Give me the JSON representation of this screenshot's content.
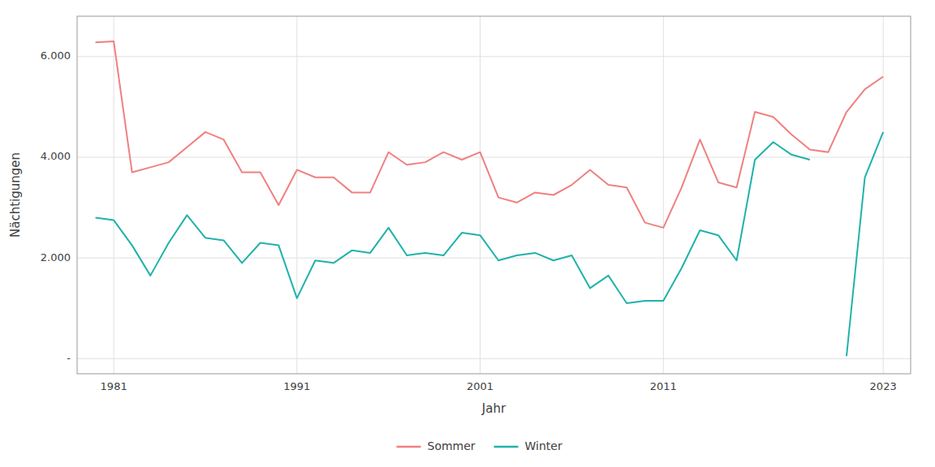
{
  "chart_data": {
    "type": "line",
    "xlabel": "Jahr",
    "ylabel": "Nächtigungen",
    "x": [
      1980,
      1981,
      1982,
      1983,
      1984,
      1985,
      1986,
      1987,
      1988,
      1989,
      1990,
      1991,
      1992,
      1993,
      1994,
      1995,
      1996,
      1997,
      1998,
      1999,
      2000,
      2001,
      2002,
      2003,
      2004,
      2005,
      2006,
      2007,
      2008,
      2009,
      2010,
      2011,
      2012,
      2013,
      2014,
      2015,
      2016,
      2017,
      2018,
      2019,
      2020,
      2021,
      2022,
      2023
    ],
    "series": [
      {
        "name": "Sommer",
        "color": "#f08080",
        "values": [
          6280,
          6300,
          3700,
          3800,
          3900,
          4200,
          4500,
          4350,
          3700,
          3700,
          3050,
          3750,
          3600,
          3600,
          3300,
          3300,
          4100,
          3850,
          3900,
          4100,
          3950,
          4100,
          3200,
          3100,
          3300,
          3250,
          3450,
          3750,
          3450,
          3400,
          2700,
          2600,
          3400,
          4350,
          3500,
          3400,
          4900,
          4800,
          4450,
          4150,
          4100,
          4900,
          5350,
          5600
        ]
      },
      {
        "name": "Winter",
        "color": "#20b2aa",
        "values": [
          2800,
          2750,
          2250,
          1650,
          2300,
          2850,
          2400,
          2350,
          1900,
          2300,
          2250,
          1200,
          1950,
          1900,
          2150,
          2100,
          2600,
          2050,
          2100,
          2050,
          2500,
          2450,
          1950,
          2050,
          2100,
          1950,
          2050,
          1400,
          1650,
          1100,
          1150,
          1150,
          1800,
          2550,
          2450,
          1950,
          3950,
          4300,
          4050,
          3950,
          null,
          50,
          3600,
          4500
        ]
      }
    ],
    "xlim": [
      1979.0,
      2024.5
    ],
    "ylim": [
      -300,
      6800
    ],
    "xticks": [
      1981,
      1991,
      2001,
      2011,
      2023
    ],
    "yticks": [
      {
        "value": 0,
        "label": "-"
      },
      {
        "value": 2000,
        "label": "2.000"
      },
      {
        "value": 4000,
        "label": "4.000"
      },
      {
        "value": 6000,
        "label": "6.000"
      }
    ],
    "grid": true,
    "legend": "bottom"
  }
}
